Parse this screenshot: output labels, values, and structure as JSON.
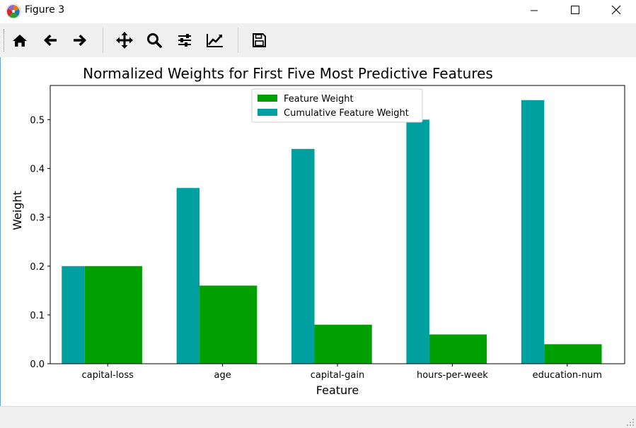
{
  "window": {
    "title": "Figure 3",
    "minimize_icon": "minimize-icon",
    "maximize_icon": "maximize-icon",
    "close_icon": "close-icon"
  },
  "toolbar": {
    "buttons": [
      {
        "name": "home-button",
        "icon": "home-icon"
      },
      {
        "name": "back-button",
        "icon": "arrow-left-icon"
      },
      {
        "name": "forward-button",
        "icon": "arrow-right-icon"
      },
      {
        "name": "pan-button",
        "icon": "move-icon"
      },
      {
        "name": "zoom-button",
        "icon": "magnifier-icon"
      },
      {
        "name": "subplots-button",
        "icon": "sliders-icon"
      },
      {
        "name": "edit-axis-button",
        "icon": "line-chart-icon"
      },
      {
        "name": "save-button",
        "icon": "floppy-disk-icon"
      }
    ]
  },
  "status": {
    "text": ""
  },
  "chart_data": {
    "type": "bar",
    "title": "Normalized Weights for First Five Most Predictive Features",
    "xlabel": "Feature",
    "ylabel": "Weight",
    "categories": [
      "capital-loss",
      "age",
      "capital-gain",
      "hours-per-week",
      "education-num"
    ],
    "series": [
      {
        "name": "Feature Weight",
        "color": "#00a000",
        "values": [
          0.2,
          0.16,
          0.08,
          0.06,
          0.04
        ]
      },
      {
        "name": "Cumulative Feature Weight",
        "color": "#00a0a0",
        "values": [
          0.2,
          0.36,
          0.44,
          0.5,
          0.54
        ]
      }
    ],
    "ylim": [
      0,
      0.57
    ],
    "yticks": [
      0.0,
      0.1,
      0.2,
      0.3,
      0.4,
      0.5
    ],
    "ytick_labels": [
      "0.0",
      "0.1",
      "0.2",
      "0.3",
      "0.4",
      "0.5"
    ],
    "legend": "upper-center",
    "grid": false
  }
}
